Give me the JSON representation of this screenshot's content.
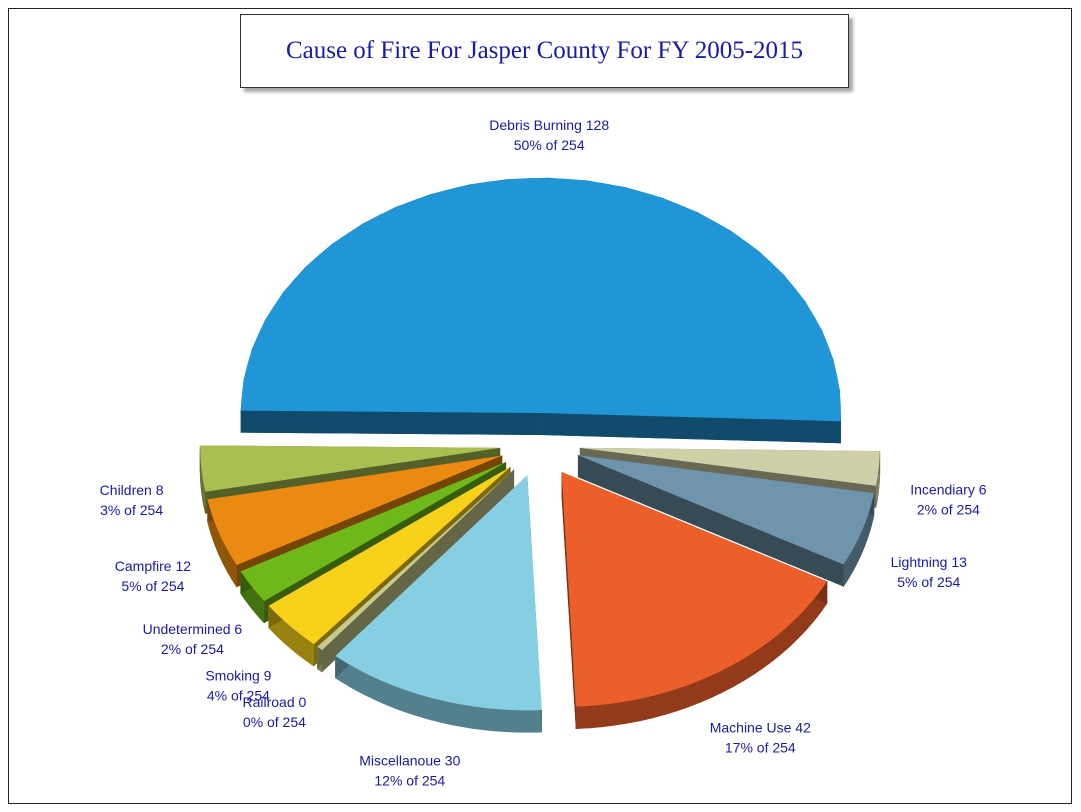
{
  "chart_data": {
    "type": "pie",
    "title": "Cause of Fire For Jasper County For FY 2005-2015",
    "total": 254,
    "slices": [
      {
        "name": "Debris Burning",
        "value": 128,
        "percent_label": "50% of 254",
        "color": "#2196d6"
      },
      {
        "name": "Children",
        "value": 8,
        "percent_label": "3% of 254",
        "color": "#a9bf52"
      },
      {
        "name": "Campfire",
        "value": 12,
        "percent_label": "5% of 254",
        "color": "#ea8a10"
      },
      {
        "name": "Undetermined",
        "value": 6,
        "percent_label": "2% of 254",
        "color": "#6fb81a"
      },
      {
        "name": "Smoking",
        "value": 9,
        "percent_label": "4% of 254",
        "color": "#f7d11a"
      },
      {
        "name": "Railroad",
        "value": 0,
        "percent_label": "0% of 254",
        "color": "#c8cb8c"
      },
      {
        "name": "Miscellanoue",
        "value": 30,
        "percent_label": "12% of 254",
        "color": "#86cfe3"
      },
      {
        "name": "Machine Use",
        "value": 42,
        "percent_label": "17% of 254",
        "color": "#ec5f2a"
      },
      {
        "name": "Lightning",
        "value": 13,
        "percent_label": "5% of 254",
        "color": "#6e95ab"
      },
      {
        "name": "Incendiary",
        "value": 6,
        "percent_label": "2% of 254",
        "color": "#cfd0a7"
      }
    ],
    "exploded": true,
    "style": "3d"
  }
}
